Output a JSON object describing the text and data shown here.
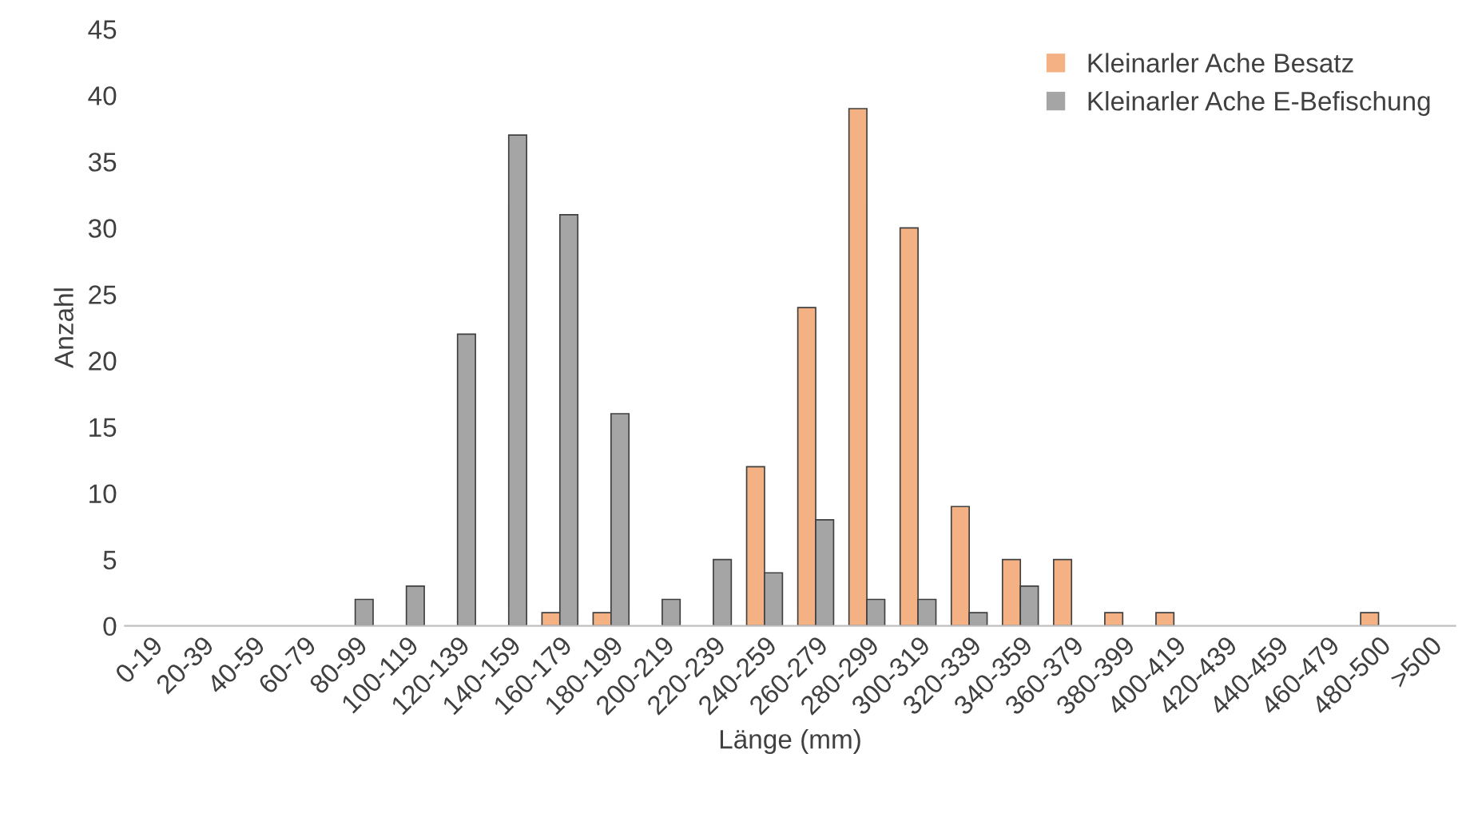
{
  "chart_data": {
    "type": "bar",
    "xlabel": "Länge (mm)",
    "ylabel": "Anzahl",
    "categories": [
      "0-19",
      "20-39",
      "40-59",
      "60-79",
      "80-99",
      "100-119",
      "120-139",
      "140-159",
      "160-179",
      "180-199",
      "200-219",
      "220-239",
      "240-259",
      "260-279",
      "280-299",
      "300-319",
      "320-339",
      "340-359",
      "360-379",
      "380-399",
      "400-419",
      "420-439",
      "440-459",
      "460-479",
      "480-500",
      ">500"
    ],
    "series": [
      {
        "name": "Kleinarler Ache Besatz",
        "color": "#f4b183",
        "values": [
          0,
          0,
          0,
          0,
          0,
          0,
          0,
          0,
          1,
          1,
          0,
          0,
          12,
          24,
          39,
          30,
          9,
          5,
          5,
          1,
          1,
          0,
          0,
          0,
          1,
          0
        ]
      },
      {
        "name": "Kleinarler Ache E-Befischung",
        "color": "#a5a5a5",
        "values": [
          0,
          0,
          0,
          0,
          2,
          3,
          22,
          37,
          31,
          16,
          2,
          5,
          4,
          8,
          2,
          2,
          1,
          3,
          0,
          0,
          0,
          0,
          0,
          0,
          0,
          0
        ]
      }
    ],
    "ylim": [
      0,
      45
    ],
    "yticks": [
      0,
      5,
      10,
      15,
      20,
      25,
      30,
      35,
      40,
      45
    ],
    "grid": false,
    "legend": "top right"
  }
}
